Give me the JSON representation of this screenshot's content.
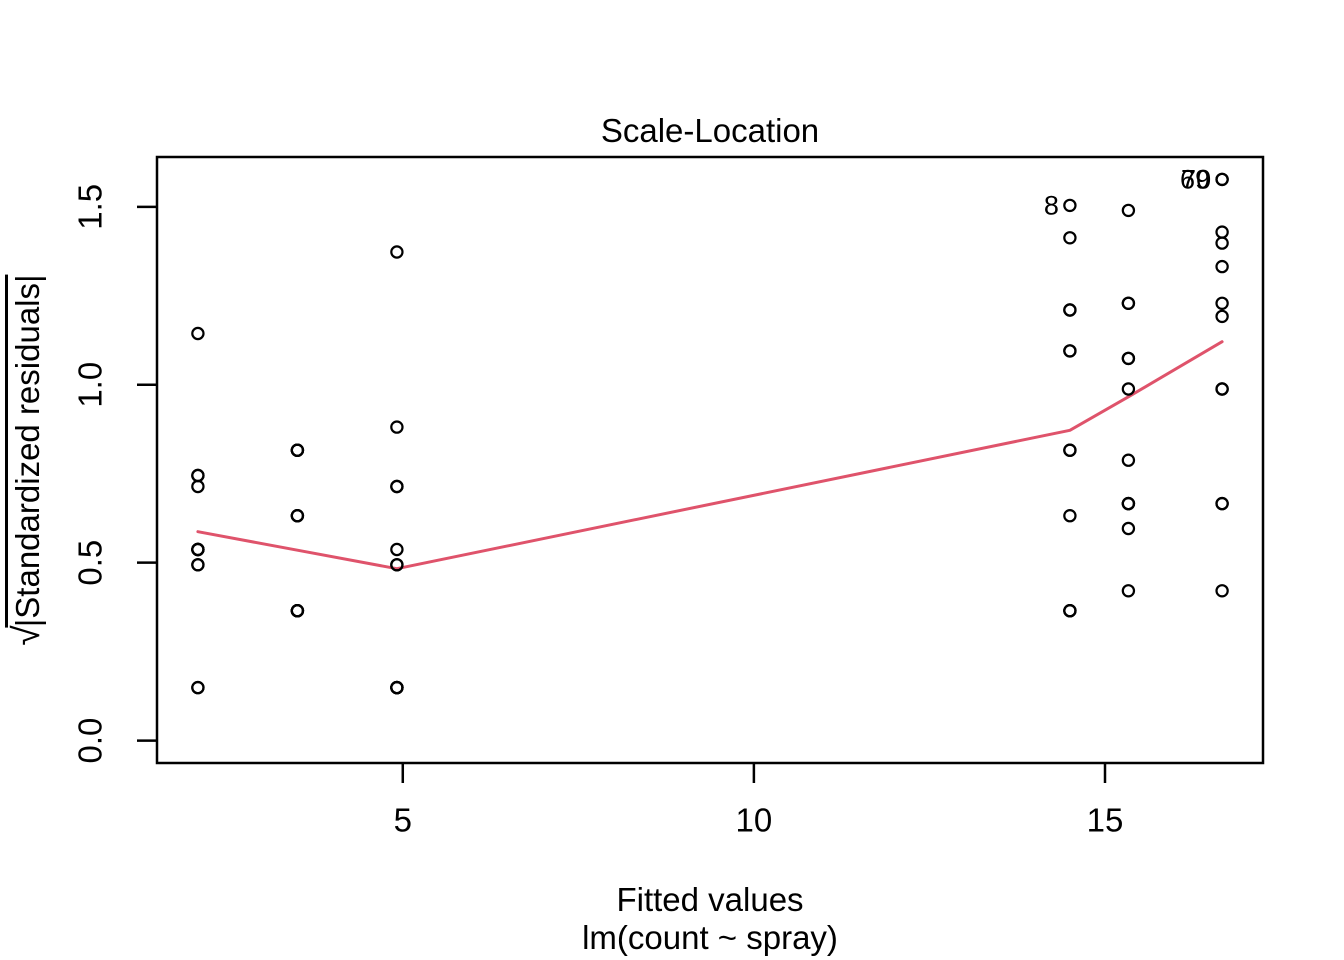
{
  "figure": {
    "title": "Scale-Location",
    "xlabel": "Fitted values",
    "model_label": "lm(count ~ spray)",
    "ylabel_radical": "√",
    "ylabel_text": "|Standardized residuals|"
  },
  "chart_data": {
    "type": "scatter",
    "title": "Scale-Location",
    "xlabel": "Fitted values",
    "xlabel_line2": "lm(count ~ spray)",
    "ylabel": "sqrt(|Standardized residuals|)",
    "x_ticks": [
      5,
      10,
      15
    ],
    "y_ticks": [
      "0.0",
      "0.5",
      "1.0",
      "1.5"
    ],
    "xlim": [
      1.5,
      17.25
    ],
    "ylim": [
      -0.063,
      1.64
    ],
    "grid": false,
    "legend": "none",
    "point_color": "#000000",
    "smooth_color": "#DF536B",
    "groups": [
      {
        "fitted": 2.083,
        "sqrt_abs_std_resid": [
          0.745,
          0.537,
          1.144,
          0.149,
          0.494,
          0.537,
          0.149,
          0.537,
          0.494,
          0.745,
          0.537,
          0.714
        ]
      },
      {
        "fitted": 3.5,
        "sqrt_abs_std_resid": [
          0.365,
          0.632,
          0.365,
          0.632,
          0.365,
          0.816,
          0.816,
          0.816,
          0.365,
          0.632,
          0.816,
          0.365
        ]
      },
      {
        "fitted": 4.917,
        "sqrt_abs_std_resid": [
          0.714,
          0.149,
          1.373,
          0.537,
          0.494,
          0.714,
          0.149,
          0.149,
          0.149,
          0.149,
          0.881,
          0.494
        ]
      },
      {
        "fitted": 14.5,
        "sqrt_abs_std_resid": [
          1.095,
          1.413,
          1.21,
          0.365,
          0.365,
          0.816,
          1.095,
          1.504,
          0.816,
          1.21,
          0.365,
          0.632
        ]
      },
      {
        "fitted": 15.333,
        "sqrt_abs_std_resid": [
          1.074,
          0.666,
          1.229,
          1.074,
          0.421,
          0.596,
          0.666,
          0.666,
          0.988,
          1.229,
          1.49,
          0.788
        ]
      },
      {
        "fitted": 16.667,
        "sqrt_abs_std_resid": [
          1.229,
          1.429,
          0.666,
          1.192,
          0.666,
          0.421,
          0.988,
          1.332,
          1.577,
          1.577,
          1.398,
          0.988
        ]
      }
    ],
    "smooth_line": [
      [
        2.083,
        0.587
      ],
      [
        3.5,
        0.535
      ],
      [
        4.917,
        0.483
      ],
      [
        14.5,
        0.872
      ],
      [
        15.333,
        0.966
      ],
      [
        16.667,
        1.121
      ]
    ],
    "labeled_points": [
      {
        "label": "8",
        "x": 14.5,
        "y": 1.504
      },
      {
        "label": "70",
        "x": 16.667,
        "y": 1.577
      },
      {
        "label": "69",
        "x": 16.667,
        "y": 1.577
      }
    ]
  }
}
